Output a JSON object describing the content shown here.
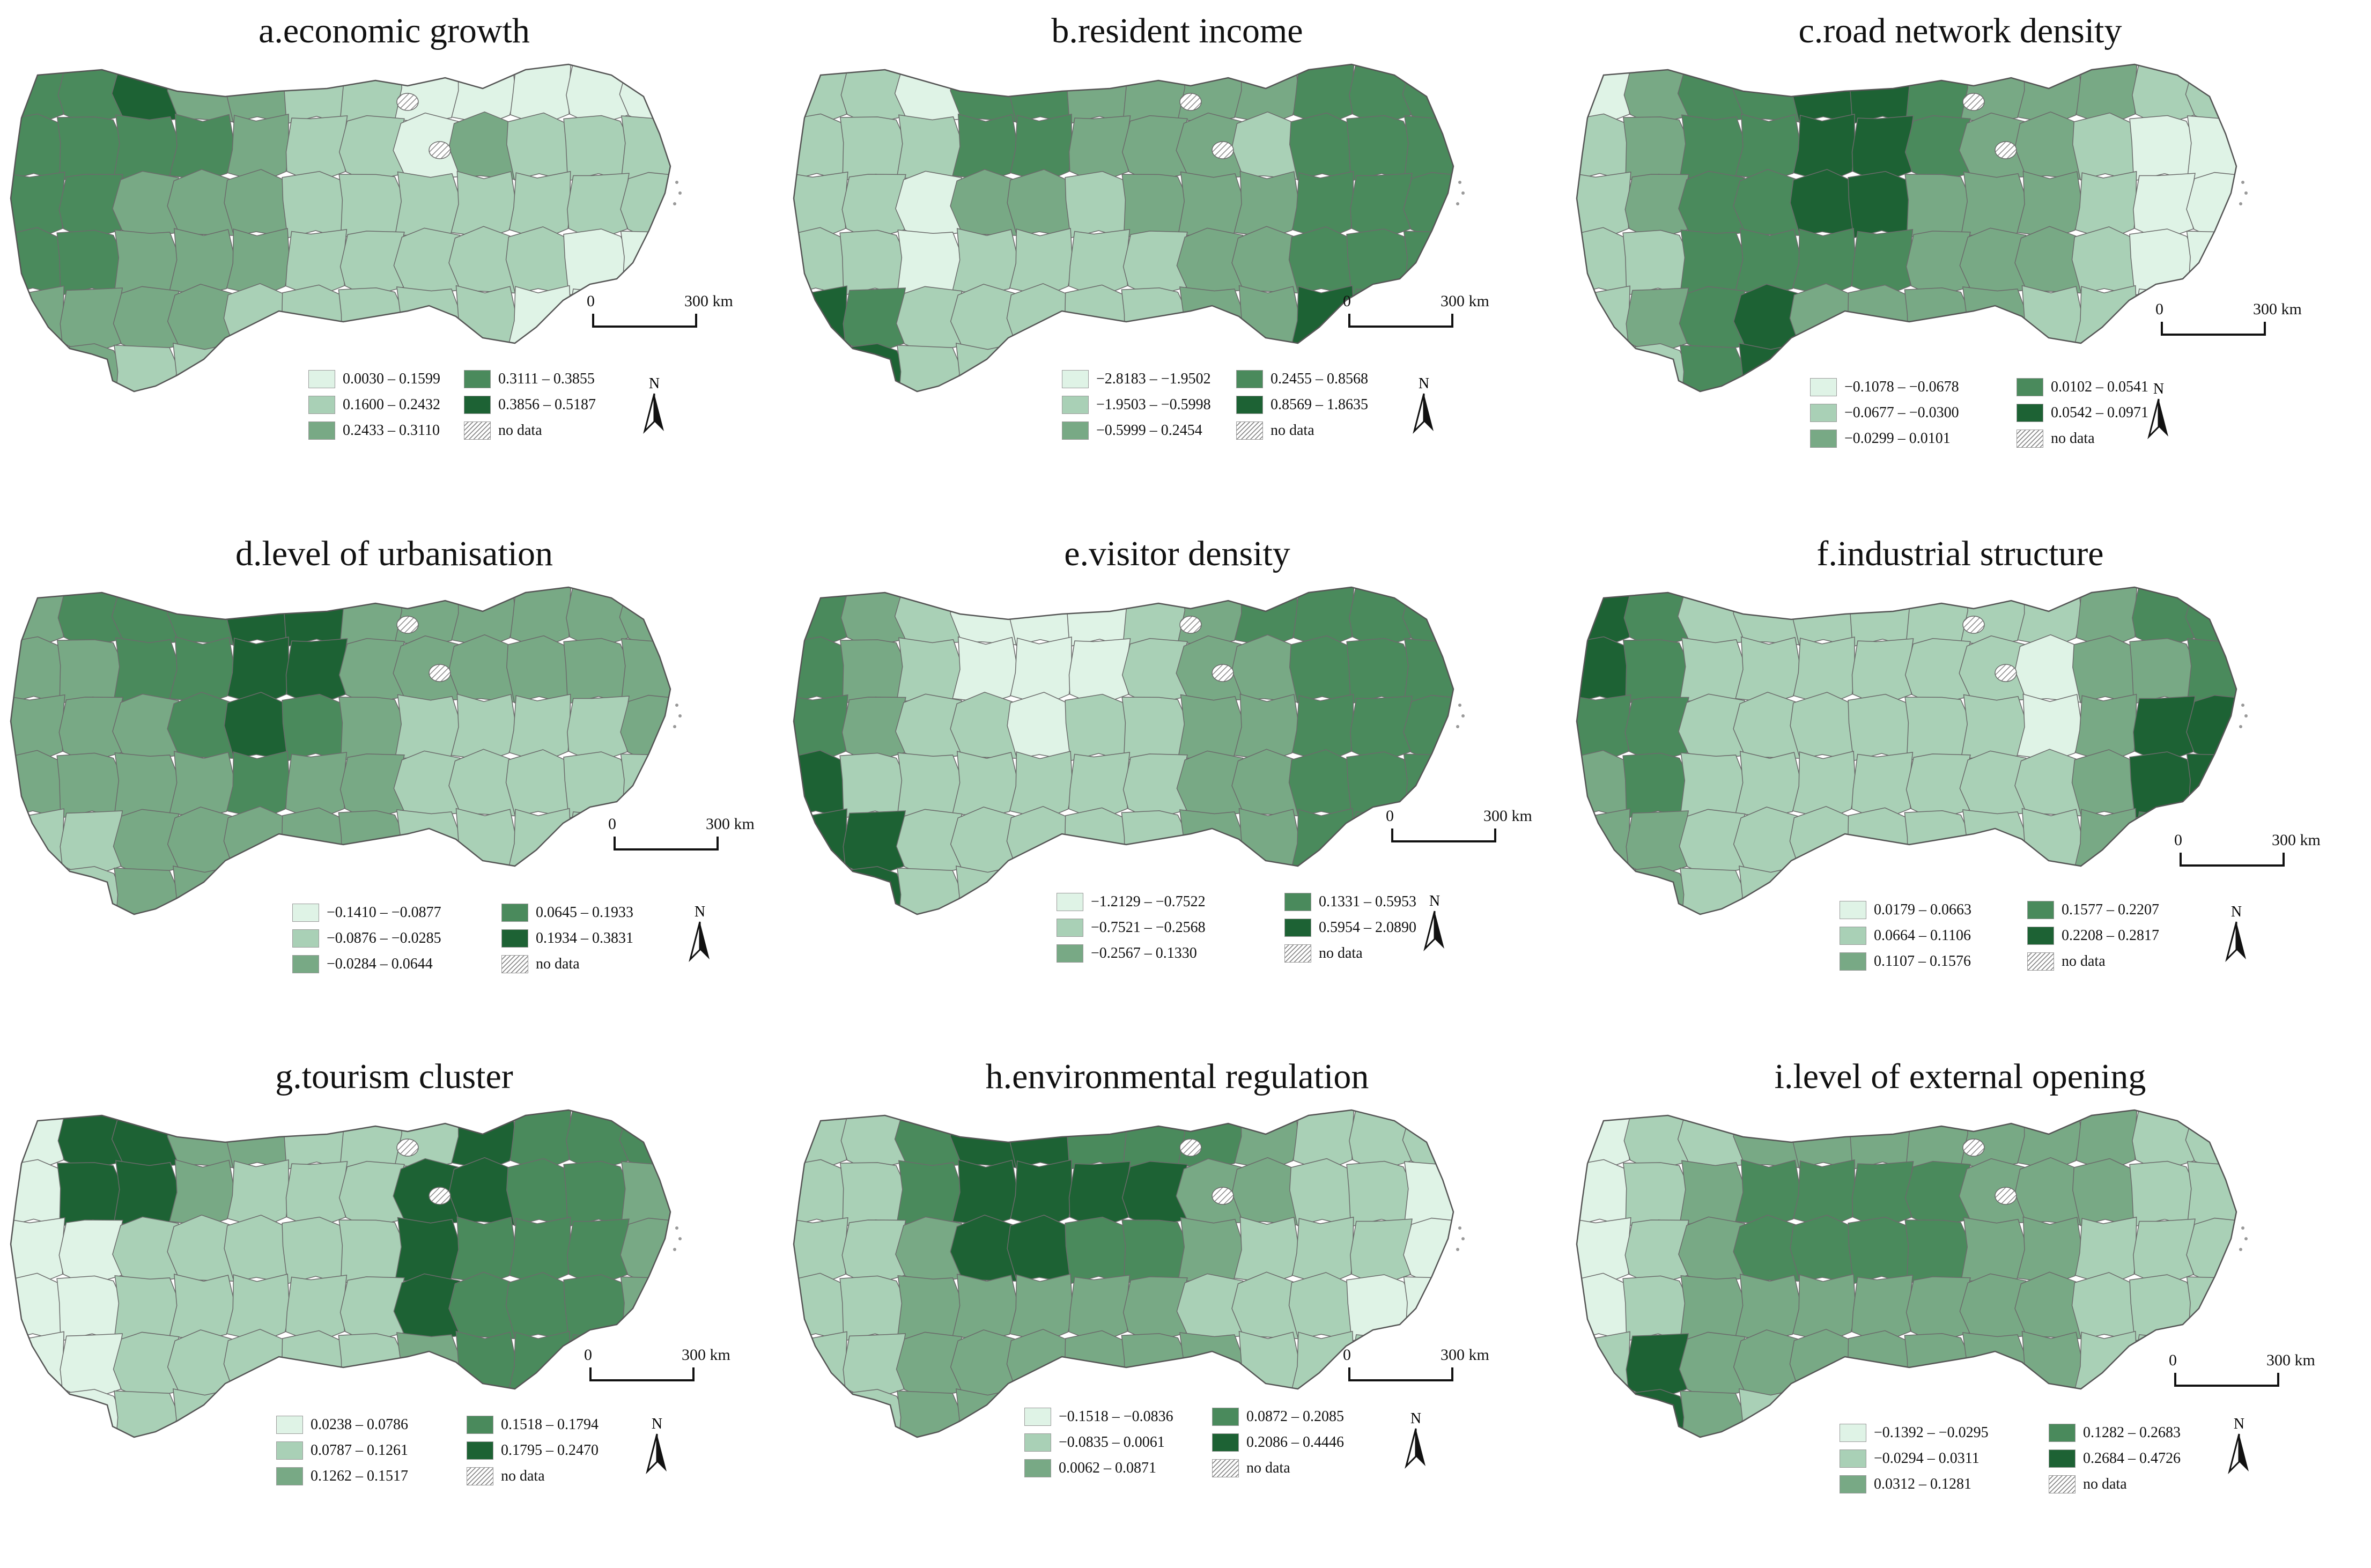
{
  "colors": {
    "c1": "#dff3e6",
    "c2": "#a9d0b6",
    "c3": "#78a985",
    "c4": "#4a8a5c",
    "c5": "#1d6234",
    "nodata": "hatched grey",
    "border": "#6b6b6b"
  },
  "common": {
    "scale_zero": "0",
    "scale_label": "300  km",
    "north_label": "N",
    "no_data": "no data"
  },
  "panels": [
    {
      "id": "a",
      "title": "a.economic growth",
      "legend": [
        "0.0030 – 0.1599",
        "0.1600 – 0.2432",
        "0.2433 – 0.3110",
        "0.3111 – 0.3855",
        "0.3856 – 0.5187"
      ]
    },
    {
      "id": "b",
      "title": "b.resident income",
      "legend": [
        "−2.8183 – −1.9502",
        "−1.9503 – −0.5998",
        "−0.5999 – 0.2454",
        "0.2455 – 0.8568",
        "0.8569 – 1.8635"
      ]
    },
    {
      "id": "c",
      "title": "c.road network density",
      "legend": [
        "−0.1078 – −0.0678",
        "−0.0677 – −0.0300",
        "−0.0299 – 0.0101",
        "0.0102 – 0.0541",
        "0.0542 – 0.0971"
      ]
    },
    {
      "id": "d",
      "title": "d.level of urbanisation",
      "legend": [
        "−0.1410 – −0.0877",
        "−0.0876 – −0.0285",
        "−0.0284 – 0.0644",
        "0.0645 – 0.1933",
        "0.1934 – 0.3831"
      ]
    },
    {
      "id": "e",
      "title": "e.visitor density",
      "legend": [
        "−1.2129 – −0.7522",
        "−0.7521 – −0.2568",
        "−0.2567 – 0.1330",
        "0.1331 – 0.5953",
        "0.5954 – 2.0890"
      ]
    },
    {
      "id": "f",
      "title": "f.industrial structure",
      "legend": [
        "0.0179 – 0.0663",
        "0.0664 – 0.1106",
        "0.1107 – 0.1576",
        "0.1577 – 0.2207",
        "0.2208 – 0.2817"
      ]
    },
    {
      "id": "g",
      "title": "g.tourism cluster",
      "legend": [
        "0.0238 – 0.0786",
        "0.0787 – 0.1261",
        "0.1262 – 0.1517",
        "0.1518 – 0.1794",
        "0.1795 – 0.2470"
      ]
    },
    {
      "id": "h",
      "title": "h.environmental regulation",
      "legend": [
        "−0.1518 – −0.0836",
        "−0.0835 – 0.0061",
        "0.0062 – 0.0871",
        "0.0872 – 0.2085",
        "0.2086 – 0.4446"
      ]
    },
    {
      "id": "i",
      "title": "i.level of external opening",
      "legend": [
        "−0.1392 – −0.0295",
        "−0.0294 – 0.0311",
        "0.0312 – 0.1281",
        "0.1282 – 0.2683",
        "0.2684 – 0.4726"
      ]
    }
  ]
}
